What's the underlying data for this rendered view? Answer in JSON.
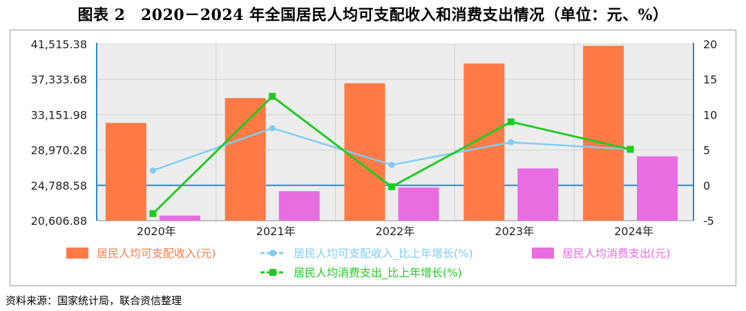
{
  "header": {
    "title": "图表 2　2020－2024 年全国居民人均可支配收入和消费支出情况（单位：元、%）"
  },
  "footer": {
    "source": "资料来源：国家统计局，联合资信整理"
  },
  "colors": {
    "income_bar": "#FF7A45",
    "consumption_bar": "#E86DE0",
    "income_growth_line": "#7FCCF5",
    "consumption_growth_line": "#1ECC1E",
    "axis_line": "#2E86C1",
    "plot_background": "#EDEDED"
  },
  "chart_data": {
    "type": "bar",
    "categories": [
      "2020年",
      "2021年",
      "2022年",
      "2023年",
      "2024年"
    ],
    "series": [
      {
        "name": "居民人均可支配收入(元)",
        "type": "bar",
        "axis": "left",
        "values": [
          32189,
          35128,
          36883,
          39218,
          41314
        ]
      },
      {
        "name": "居民人均可支配收入_比上年增长(%)",
        "type": "line",
        "axis": "right",
        "values": [
          2.1,
          8.1,
          2.9,
          6.1,
          5.1
        ]
      },
      {
        "name": "居民人均消费支出(元)",
        "type": "bar",
        "axis": "left",
        "values": [
          21210,
          24100,
          24538,
          26796,
          28227
        ]
      },
      {
        "name": "居民人均消费支出_比上年增长(%)",
        "type": "line",
        "axis": "right",
        "values": [
          -4.0,
          12.6,
          -0.2,
          9.0,
          5.1
        ]
      }
    ],
    "y_left": {
      "ticks": [
        "41,515.38",
        "37,333.68",
        "33,151.98",
        "28,970.28",
        "24,788.58",
        "20,606.88"
      ],
      "range": [
        20606.88,
        41515.38
      ]
    },
    "y_right": {
      "ticks": [
        "20",
        "15",
        "10",
        "5",
        "0",
        "-5"
      ],
      "range": [
        -5,
        20
      ]
    },
    "grid": true,
    "legend_position": "bottom"
  }
}
